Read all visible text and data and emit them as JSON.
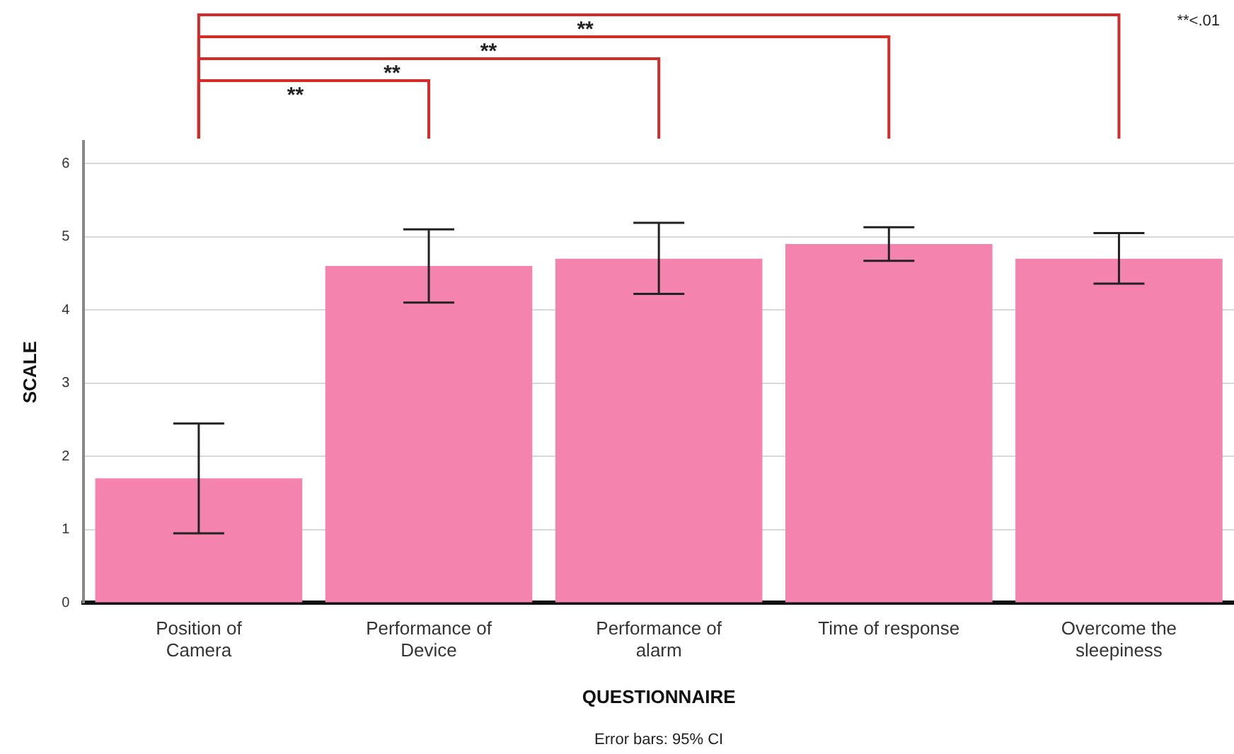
{
  "chart_data": {
    "type": "bar",
    "xlabel": "QUESTIONNAIRE",
    "ylabel": "SCALE",
    "categories": [
      "Position of Camera",
      "Performance of Device",
      "Performance of alarm",
      "Time of response",
      "Overcome the sleepiness"
    ],
    "values": [
      1.7,
      4.6,
      4.7,
      4.9,
      4.7
    ],
    "errors": [
      [
        0.95,
        2.45
      ],
      [
        4.1,
        5.1
      ],
      [
        4.22,
        5.19
      ],
      [
        4.67,
        5.13
      ],
      [
        4.36,
        5.05
      ]
    ],
    "color": "#f484ad",
    "ylim": [
      0,
      6.3
    ],
    "yticks": [
      0,
      1,
      2,
      3,
      4,
      5,
      6
    ],
    "grid": "y",
    "legend": false,
    "annotations": [
      "**",
      "**",
      "**",
      "**",
      "**<.01",
      "Error bars: 95% CI"
    ]
  }
}
